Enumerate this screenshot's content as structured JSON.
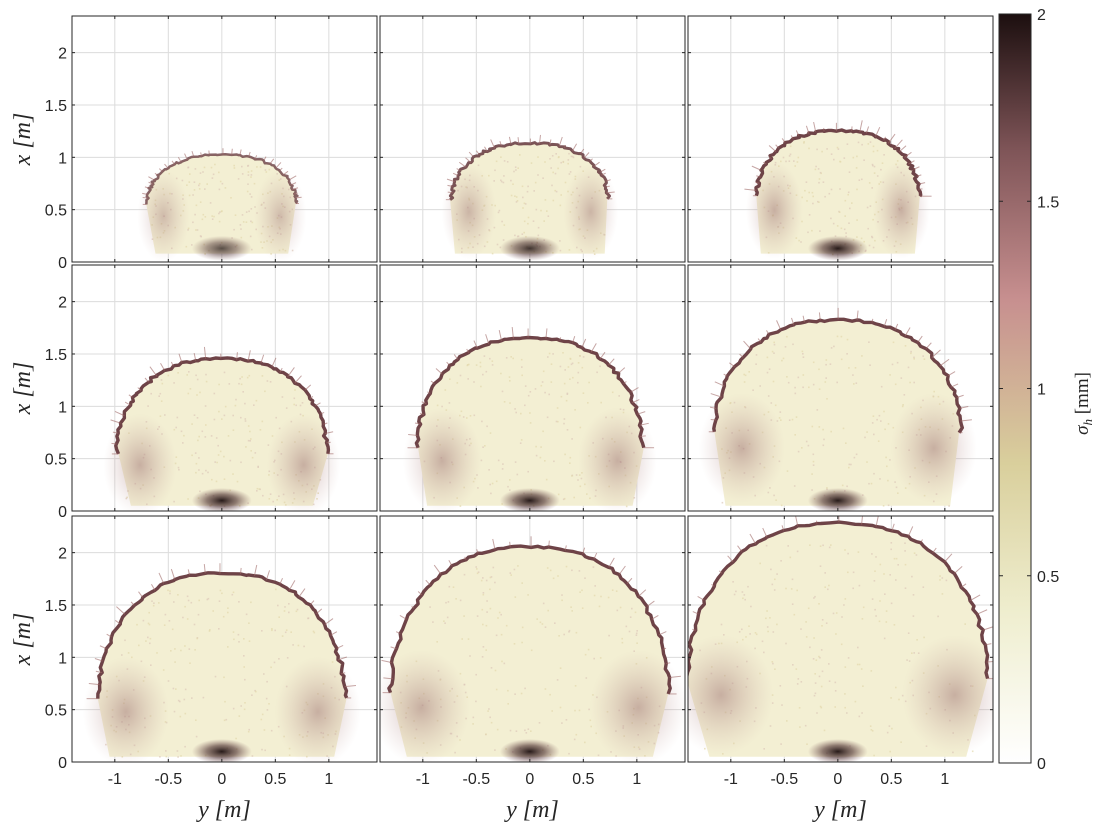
{
  "chart_data": {
    "type": "heatmap",
    "layout": "3x3 panel grid with shared colorbar",
    "colormap": "pink-to-dark brown (white at 0, dark at 2)",
    "grid": true,
    "axes": {
      "x_axis_label": "y [m]",
      "y_axis_label": "x [m]",
      "xlim": [
        -1.4,
        1.45
      ],
      "ylim": [
        0,
        2.35
      ],
      "x_ticks": [
        -1,
        -0.5,
        0,
        0.5,
        1
      ],
      "x_tick_labels": [
        "-1",
        "-0.5",
        "0",
        "0.5",
        "1"
      ],
      "y_ticks": [
        0,
        0.5,
        1,
        1.5,
        2
      ],
      "y_tick_labels": [
        "0",
        "0.5",
        "1",
        "1.5",
        "2"
      ]
    },
    "colorbar": {
      "label": "σ_h [mm]",
      "label_main": "σ",
      "label_sub": "h",
      "label_unit": " [mm]",
      "range": [
        0,
        2
      ],
      "ticks": [
        0,
        0.5,
        1,
        1.5,
        2
      ],
      "tick_labels": [
        "0",
        "0.5",
        "1",
        "1.5",
        "2"
      ],
      "colors": [
        "#ffffff",
        "#efeecf",
        "#d9cf9c",
        "#c78f8f",
        "#7e5457",
        "#1c0f0f"
      ]
    },
    "panels": [
      {
        "row": 0,
        "col": 0,
        "extent": {
          "base_halfwidth": 0.62,
          "max_halfwidth": 0.7,
          "max_at": 0.55,
          "top": 1.02,
          "bottom": 0.08
        },
        "max_value": 1.2
      },
      {
        "row": 0,
        "col": 1,
        "extent": {
          "base_halfwidth": 0.7,
          "max_halfwidth": 0.73,
          "max_at": 0.6,
          "top": 1.13,
          "bottom": 0.08
        },
        "max_value": 1.6
      },
      {
        "row": 0,
        "col": 2,
        "extent": {
          "base_halfwidth": 0.72,
          "max_halfwidth": 0.76,
          "max_at": 0.62,
          "top": 1.25,
          "bottom": 0.08
        },
        "max_value": 2.0
      },
      {
        "row": 1,
        "col": 0,
        "extent": {
          "base_halfwidth": 0.85,
          "max_halfwidth": 0.98,
          "max_at": 0.55,
          "top": 1.45,
          "bottom": 0.05
        },
        "max_value": 2.0
      },
      {
        "row": 1,
        "col": 1,
        "extent": {
          "base_halfwidth": 0.96,
          "max_halfwidth": 1.05,
          "max_at": 0.6,
          "top": 1.65,
          "bottom": 0.05
        },
        "max_value": 2.0
      },
      {
        "row": 1,
        "col": 2,
        "extent": {
          "base_halfwidth": 1.05,
          "max_halfwidth": 1.15,
          "max_at": 0.75,
          "top": 1.82,
          "bottom": 0.05
        },
        "max_value": 2.0
      },
      {
        "row": 2,
        "col": 0,
        "extent": {
          "base_halfwidth": 1.05,
          "max_halfwidth": 1.15,
          "max_at": 0.6,
          "top": 1.8,
          "bottom": 0.05
        },
        "max_value": 2.0
      },
      {
        "row": 2,
        "col": 1,
        "extent": {
          "base_halfwidth": 1.15,
          "max_halfwidth": 1.3,
          "max_at": 0.65,
          "top": 2.05,
          "bottom": 0.05
        },
        "max_value": 2.0
      },
      {
        "row": 2,
        "col": 2,
        "extent": {
          "base_halfwidth": 1.2,
          "max_halfwidth": 1.4,
          "max_at": 0.8,
          "top": 2.28,
          "bottom": 0.05
        },
        "max_value": 2.0
      }
    ]
  }
}
